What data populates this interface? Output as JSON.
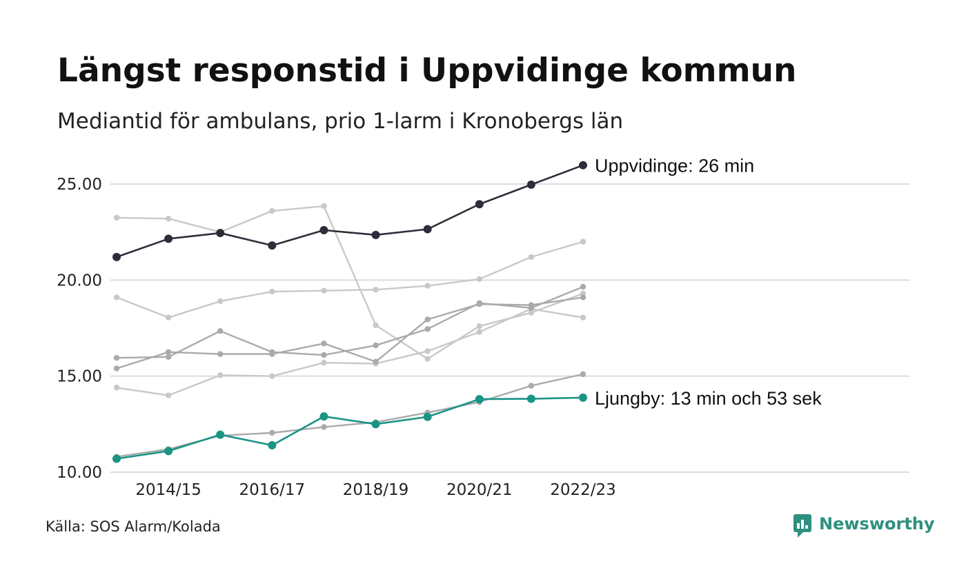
{
  "header": {
    "title": "Längst responstid i Uppvidinge kommun",
    "subtitle": "Mediantid för ambulans, prio 1-larm i Kronobergs län"
  },
  "footer": {
    "source": "Källa: SOS Alarm/Kolada",
    "brand": "Newsworthy"
  },
  "colors": {
    "highlight_dark": "#2d2d3a",
    "highlight_teal": "#1a9485",
    "background_series": [
      "#c8c8c8",
      "#c8c8c8",
      "#c8c8c8",
      "#aaaaaa",
      "#aaaaaa",
      "#aaaaaa",
      "#c8c8c8",
      "#aaaaaa"
    ],
    "grid": "#dcdcdc",
    "brand": "#2e9080"
  },
  "chart_data": {
    "type": "line",
    "x": [
      "2013/14",
      "2014/15",
      "2015/16",
      "2016/17",
      "2017/18",
      "2018/19",
      "2019/20",
      "2020/21",
      "2021/22",
      "2022/23"
    ],
    "x_tick_labels": [
      "2014/15",
      "2016/17",
      "2018/19",
      "2020/21",
      "2022/23"
    ],
    "y_ticks": [
      "10.00",
      "15.00",
      "20.00",
      "25.00"
    ],
    "ylim": [
      10,
      26
    ],
    "grid": "horizontal",
    "series": [
      {
        "values": [
          23.25,
          23.2,
          22.5,
          23.6,
          23.85,
          17.65,
          15.9,
          17.6,
          18.3,
          19.3
        ],
        "color_key": 0
      },
      {
        "values": [
          19.1,
          18.05,
          18.9,
          19.4,
          19.45,
          19.5,
          19.7,
          20.05,
          21.2,
          22.0
        ],
        "color_key": 1
      },
      {
        "values": [
          14.4,
          14.0,
          15.05,
          15.0,
          15.7,
          15.65,
          16.3,
          17.3,
          18.5,
          18.05
        ],
        "color_key": 2
      },
      {
        "values": [
          15.95,
          16.0,
          17.35,
          16.25,
          16.1,
          16.6,
          17.45,
          18.8,
          18.55,
          19.65
        ],
        "color_key": 3
      },
      {
        "values": [
          15.4,
          16.25,
          16.15,
          16.15,
          16.7,
          15.75,
          17.95,
          18.75,
          18.7,
          19.1
        ],
        "color_key": 4
      },
      {
        "values": [
          10.8,
          11.2,
          11.9,
          12.05,
          12.35,
          12.6,
          13.1,
          13.65,
          14.5,
          15.1
        ],
        "color_key": 5
      },
      {
        "name": "Uppvidinge",
        "values": [
          21.2,
          22.15,
          22.45,
          21.8,
          22.6,
          22.35,
          22.65,
          23.95,
          24.97,
          25.98
        ],
        "highlight": "dark",
        "end_label": "Uppvidinge: 26 min"
      },
      {
        "name": "Ljungby",
        "values": [
          10.7,
          11.1,
          11.95,
          11.4,
          12.9,
          12.5,
          12.88,
          13.8,
          13.82,
          13.88
        ],
        "highlight": "teal",
        "end_label": "Ljungby: 13 min och 53 sek"
      }
    ]
  }
}
